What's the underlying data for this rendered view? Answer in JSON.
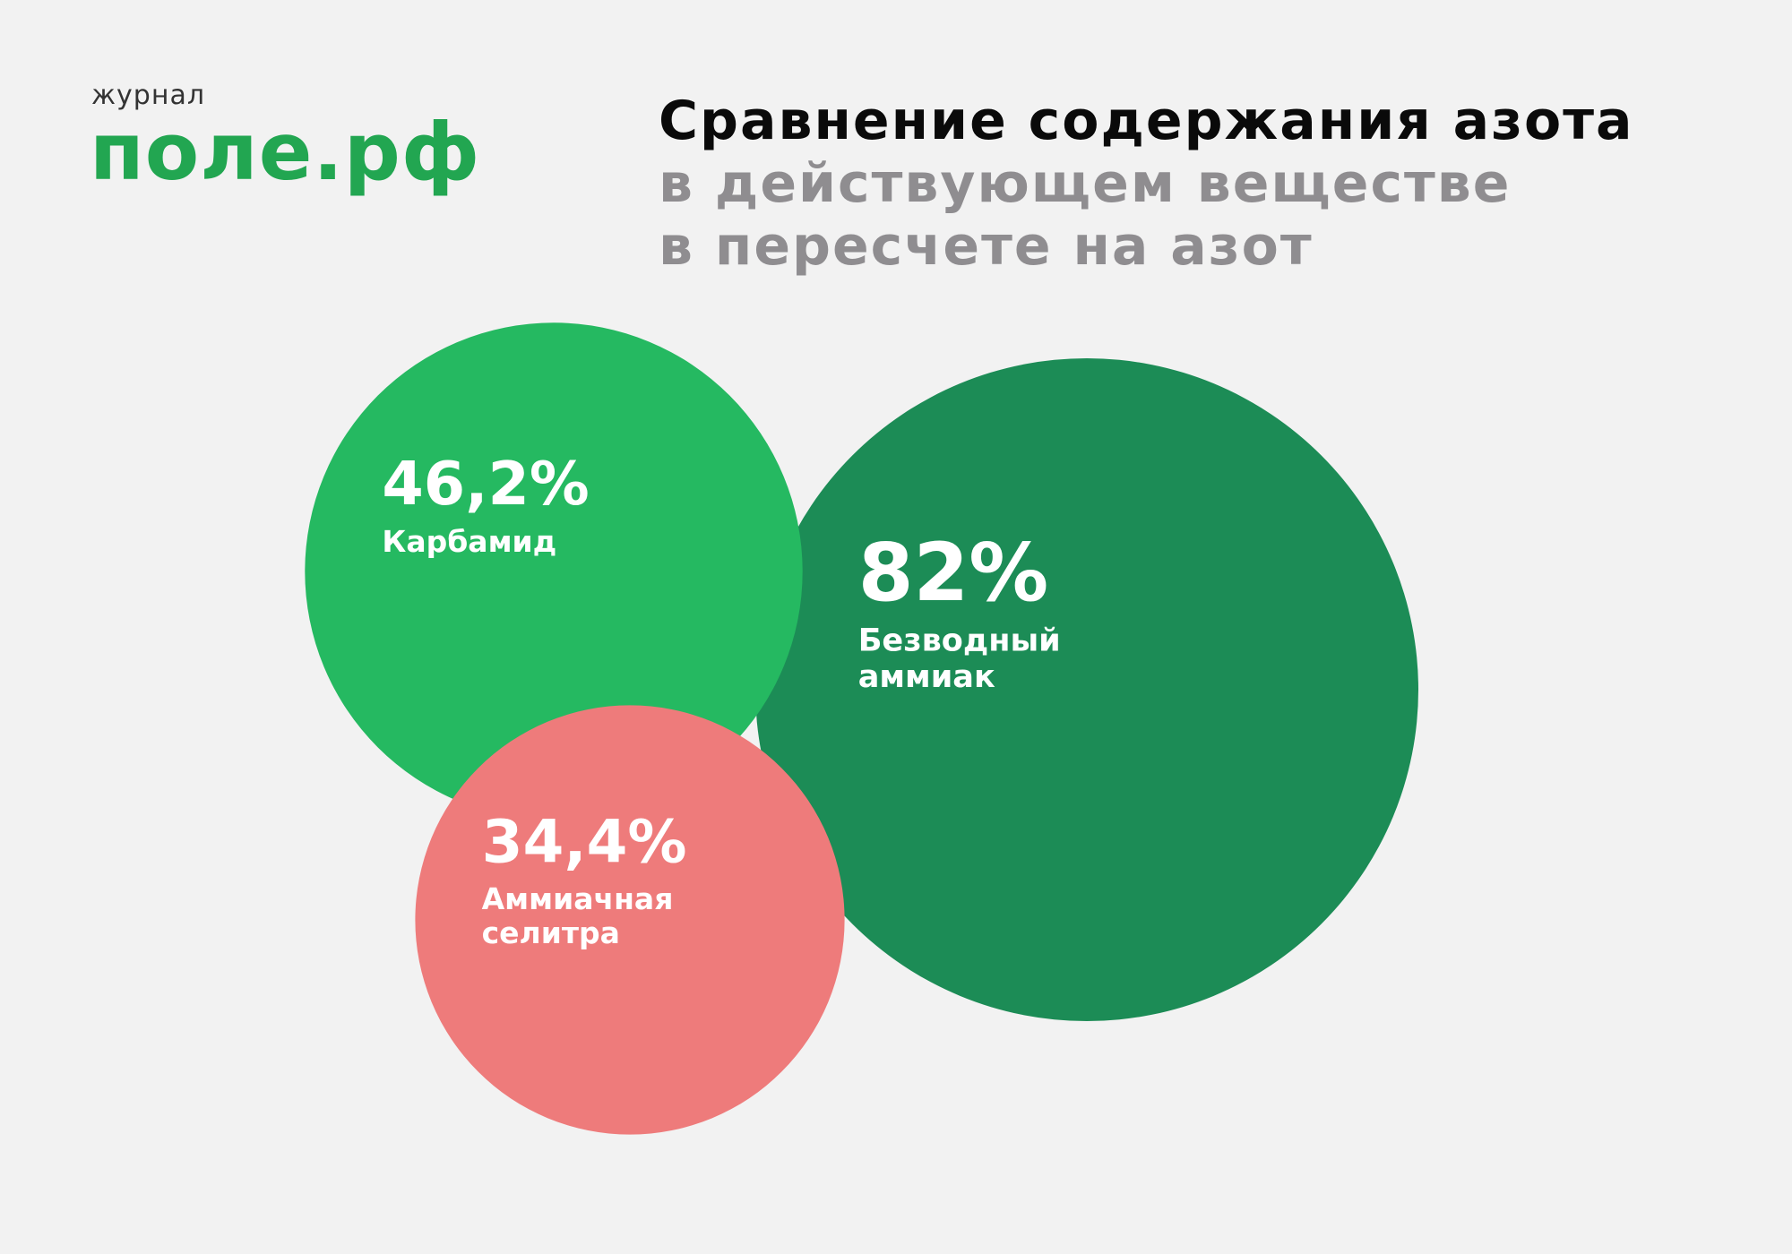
{
  "logo": {
    "small": "журнал",
    "main": "поле.рф"
  },
  "title": {
    "line1": "Сравнение содержания азота",
    "line2": "в действующем веществе",
    "line3": "в пересчете на азот"
  },
  "colors": {
    "background": "#f2f2f2",
    "brand_green": "#22a651",
    "title_dark": "#0a0a0a",
    "title_gray": "#8f8d90"
  },
  "chart_data": {
    "type": "bubble",
    "unit": "%",
    "items": [
      {
        "name": "Безводный аммиак",
        "label_lines": [
          "Безводный",
          "аммиак"
        ],
        "value": 82,
        "value_label": "82%",
        "color": "#1c8c56"
      },
      {
        "name": "Карбамид",
        "label_lines": [
          "Карбамид"
        ],
        "value": 46.2,
        "value_label": "46,2%",
        "color": "#25b961"
      },
      {
        "name": "Аммиачная селитра",
        "label_lines": [
          "Аммиачная",
          "селитра"
        ],
        "value": 34.4,
        "value_label": "34,4%",
        "color": "#ee7b7b"
      }
    ]
  }
}
